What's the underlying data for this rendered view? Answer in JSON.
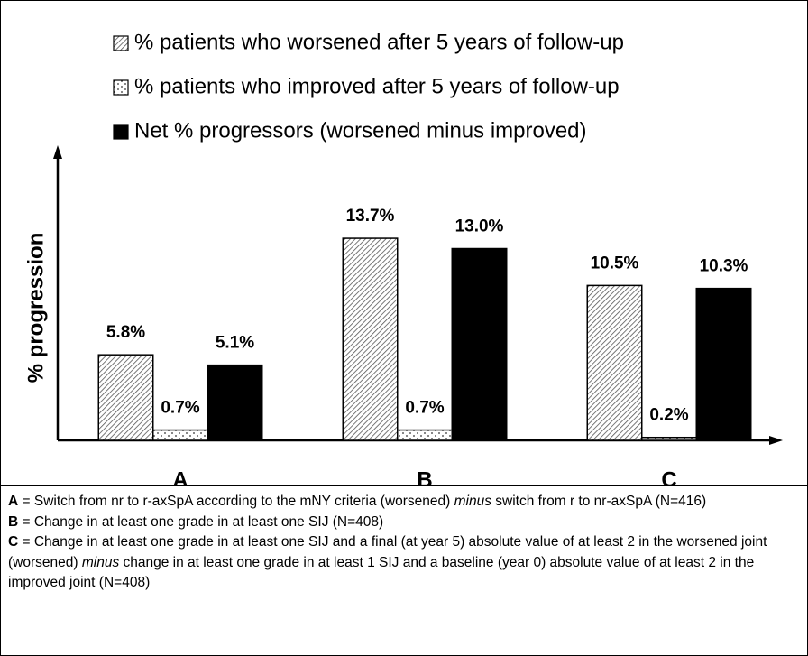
{
  "chart_data": {
    "type": "bar",
    "ylabel": "% progression",
    "categories": [
      "A",
      "B",
      "C"
    ],
    "series": [
      {
        "name": "% patients who worsened after 5 years of follow-up",
        "values": [
          5.8,
          13.7,
          10.5
        ],
        "value_labels": [
          "5.8%",
          "13.7%",
          "10.5%"
        ]
      },
      {
        "name": "% patients who improved after 5 years of follow-up",
        "values": [
          0.7,
          0.7,
          0.2
        ],
        "value_labels": [
          "0.7%",
          "0.7%",
          "0.2%"
        ]
      },
      {
        "name": "Net % progressors (worsened minus improved)",
        "values": [
          5.1,
          13.0,
          10.3
        ],
        "value_labels": [
          "5.1%",
          "13.0%",
          "10.3%"
        ]
      }
    ],
    "ylim": [
      0,
      19.7
    ]
  },
  "caption": [
    {
      "key": "A",
      "parts": [
        {
          "text": " = Switch from nr to r-axSpA according to the mNY criteria (worsened) "
        },
        {
          "em": "minus"
        },
        {
          "text": " switch from r to nr-axSpA (N=416)"
        }
      ]
    },
    {
      "key": "B",
      "parts": [
        {
          "text": " = Change in at least one grade in at least one SIJ (N=408)"
        }
      ]
    },
    {
      "key": "C",
      "parts": [
        {
          "text": " = Change in at least one grade in at least one SIJ and a final (at year 5) absolute value of at least 2 in the worsened joint (worsened) "
        },
        {
          "em": "minus"
        },
        {
          "text": " change in at least one grade in at least 1 SIJ and a baseline (year 0) absolute value of at least 2 in the improved joint (N=408)"
        }
      ]
    }
  ]
}
